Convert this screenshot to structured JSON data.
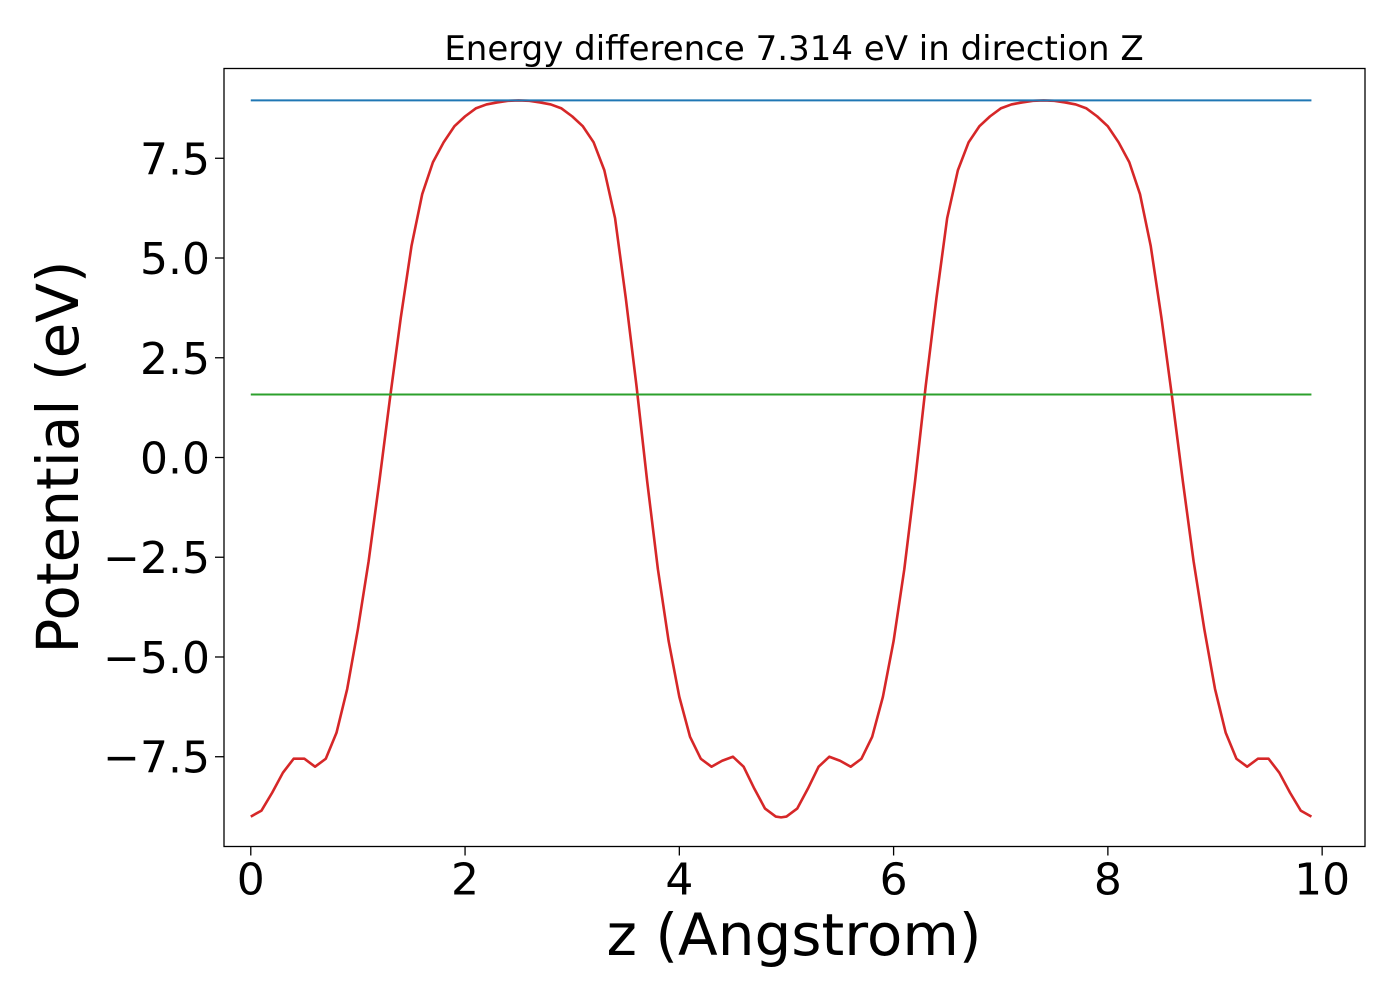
{
  "chart_data": {
    "type": "line",
    "title": "Energy difference 7.314 eV in direction Z",
    "xlabel": "z (Angstrom)",
    "ylabel": "Potential (eV)",
    "xlim": [
      -0.25,
      10.4
    ],
    "ylim": [
      -9.75,
      9.75
    ],
    "xticks": [
      0,
      2,
      4,
      6,
      8,
      10
    ],
    "xtick_labels": [
      "0",
      "2",
      "4",
      "6",
      "8",
      "10"
    ],
    "yticks": [
      -7.5,
      -5.0,
      -2.5,
      0.0,
      2.5,
      5.0,
      7.5
    ],
    "ytick_labels": [
      "−7.5",
      "−5.0",
      "−2.5",
      "0.0",
      "2.5",
      "5.0",
      "7.5"
    ],
    "grid": false,
    "legend": "none",
    "series": [
      {
        "color": "#d62728",
        "x": [
          0.0,
          0.1,
          0.2,
          0.3,
          0.4,
          0.5,
          0.6,
          0.7,
          0.8,
          0.9,
          1.0,
          1.1,
          1.2,
          1.3,
          1.4,
          1.5,
          1.6,
          1.7,
          1.8,
          1.9,
          2.0,
          2.1,
          2.2,
          2.3,
          2.4,
          2.5,
          2.6,
          2.7,
          2.8,
          2.9,
          3.0,
          3.1,
          3.2,
          3.3,
          3.4,
          3.5,
          3.6,
          3.7,
          3.8,
          3.9,
          4.0,
          4.1,
          4.2,
          4.3,
          4.4,
          4.5,
          4.6,
          4.7,
          4.8,
          4.9,
          4.95,
          5.0,
          5.1,
          5.2,
          5.3,
          5.4,
          5.5,
          5.6,
          5.7,
          5.8,
          5.9,
          6.0,
          6.1,
          6.2,
          6.3,
          6.4,
          6.5,
          6.6,
          6.7,
          6.8,
          6.9,
          7.0,
          7.1,
          7.2,
          7.3,
          7.4,
          7.5,
          7.6,
          7.7,
          7.8,
          7.9,
          8.0,
          8.1,
          8.2,
          8.3,
          8.4,
          8.5,
          8.6,
          8.7,
          8.8,
          8.9,
          9.0,
          9.1,
          9.2,
          9.3,
          9.4,
          9.5,
          9.6,
          9.7,
          9.8,
          9.9
        ],
        "y": [
          -9.0,
          -8.85,
          -8.4,
          -7.9,
          -7.55,
          -7.55,
          -7.75,
          -7.55,
          -6.9,
          -5.8,
          -4.3,
          -2.6,
          -0.6,
          1.5,
          3.5,
          5.3,
          6.6,
          7.4,
          7.9,
          8.3,
          8.55,
          8.75,
          8.85,
          8.9,
          8.94,
          8.95,
          8.94,
          8.9,
          8.85,
          8.75,
          8.55,
          8.3,
          7.9,
          7.2,
          6.0,
          4.0,
          1.8,
          -0.6,
          -2.8,
          -4.6,
          -6.0,
          -7.0,
          -7.55,
          -7.75,
          -7.6,
          -7.5,
          -7.75,
          -8.3,
          -8.8,
          -9.0,
          -9.02,
          -9.0,
          -8.8,
          -8.3,
          -7.75,
          -7.5,
          -7.6,
          -7.75,
          -7.55,
          -7.0,
          -6.0,
          -4.6,
          -2.8,
          -0.6,
          1.8,
          4.0,
          6.0,
          7.2,
          7.9,
          8.3,
          8.55,
          8.75,
          8.85,
          8.9,
          8.94,
          8.95,
          8.94,
          8.9,
          8.85,
          8.75,
          8.55,
          8.3,
          7.9,
          7.4,
          6.6,
          5.3,
          3.5,
          1.5,
          -0.6,
          -2.6,
          -4.3,
          -5.8,
          -6.9,
          -7.55,
          -7.75,
          -7.55,
          -7.55,
          -7.9,
          -8.4,
          -8.85,
          -9.0
        ]
      },
      {
        "color": "#1f77b4",
        "x": [
          0.0,
          9.9
        ],
        "y": [
          8.95,
          8.95
        ]
      },
      {
        "color": "#2ca02c",
        "x": [
          0.0,
          9.9
        ],
        "y": [
          1.58,
          1.58
        ]
      }
    ]
  }
}
